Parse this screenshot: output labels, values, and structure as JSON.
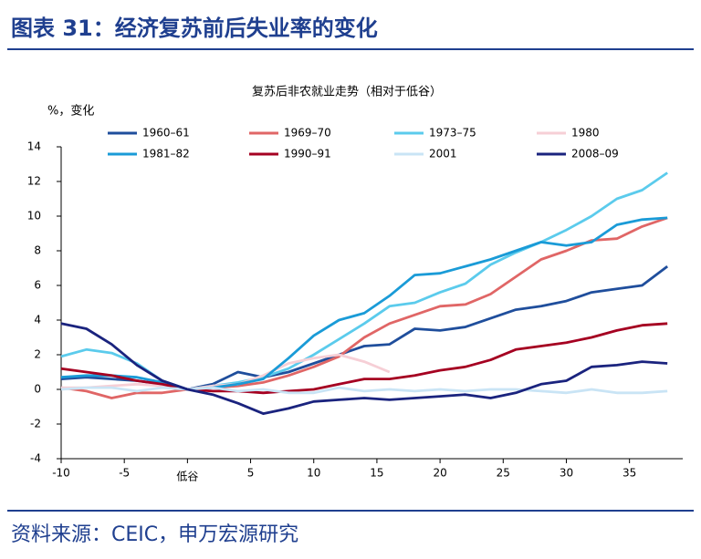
{
  "header": {
    "title": "图表 31：经济复苏前后失业率的变化"
  },
  "footer": {
    "source": "资料来源：CEIC，申万宏源研究"
  },
  "chart_data": {
    "type": "line",
    "title": "复苏后非农就业走势（相对于低谷）",
    "y_label": "%，变化",
    "x": [
      -10,
      -8,
      -6,
      -4,
      -2,
      0,
      2,
      4,
      6,
      8,
      10,
      12,
      14,
      16,
      18,
      20,
      22,
      24,
      26,
      28,
      30,
      32,
      34,
      36,
      38
    ],
    "xlim": [
      -10,
      39
    ],
    "xticks": [
      -10,
      -5,
      {
        "value": 0,
        "label": "低谷"
      },
      5,
      10,
      15,
      20,
      25,
      30,
      35
    ],
    "ylim": [
      -4,
      14
    ],
    "yticks": [
      -4,
      -2,
      0,
      2,
      4,
      6,
      8,
      10,
      12,
      14
    ],
    "series": [
      {
        "name": "1960–61",
        "color": "#1f4e9c",
        "values": [
          0.6,
          0.7,
          0.6,
          0.5,
          0.3,
          0,
          0.3,
          1.0,
          0.7,
          1.0,
          1.5,
          2.0,
          2.5,
          2.6,
          3.5,
          3.4,
          3.6,
          4.1,
          4.6,
          4.8,
          5.1,
          5.6,
          5.8,
          6.0,
          7.1
        ]
      },
      {
        "name": "1969–70",
        "color": "#e06666",
        "values": [
          0.1,
          -0.1,
          -0.5,
          -0.2,
          -0.2,
          0,
          0.1,
          0.2,
          0.4,
          0.8,
          1.3,
          1.9,
          3.0,
          3.8,
          4.3,
          4.8,
          4.9,
          5.5,
          6.5,
          7.5,
          8.0,
          8.6,
          8.7,
          9.4,
          9.9
        ]
      },
      {
        "name": "1973–75",
        "color": "#5bcbec",
        "values": [
          1.9,
          2.3,
          2.1,
          1.5,
          0.5,
          0,
          0.2,
          0.4,
          0.7,
          1.2,
          2.0,
          2.9,
          3.8,
          4.8,
          5.0,
          5.6,
          6.1,
          7.2,
          7.9,
          8.5,
          9.2,
          10.0,
          11.0,
          11.5,
          12.5
        ]
      },
      {
        "name": "1980",
        "color": "#f6cfd6",
        "values": [
          0.1,
          0.1,
          0.2,
          0.3,
          0.2,
          0,
          0.2,
          0.3,
          0.8,
          1.5,
          1.8,
          2.0,
          1.6,
          1.0,
          null,
          null,
          null,
          null,
          null,
          null,
          null,
          null,
          null,
          null,
          null
        ]
      },
      {
        "name": "1981–82",
        "color": "#1a9bd7",
        "values": [
          0.7,
          0.8,
          0.8,
          0.7,
          0.4,
          0,
          0.1,
          0.3,
          0.6,
          1.8,
          3.1,
          4.0,
          4.4,
          5.4,
          6.6,
          6.7,
          7.1,
          7.5,
          8.0,
          8.5,
          8.3,
          8.5,
          9.5,
          9.8,
          9.9
        ]
      },
      {
        "name": "1990–91",
        "color": "#a50021",
        "values": [
          1.2,
          1.0,
          0.8,
          0.5,
          0.3,
          0,
          -0.1,
          -0.1,
          -0.2,
          -0.1,
          0,
          0.3,
          0.6,
          0.6,
          0.8,
          1.1,
          1.3,
          1.7,
          2.3,
          2.5,
          2.7,
          3.0,
          3.4,
          3.7,
          3.8
        ]
      },
      {
        "name": "2001",
        "color": "#c9e4f5",
        "values": [
          0,
          0.1,
          0.1,
          -0.1,
          0.1,
          0,
          0.1,
          -0.1,
          0,
          -0.2,
          -0.2,
          0.1,
          -0.1,
          0,
          -0.1,
          0,
          -0.1,
          0,
          0,
          -0.1,
          -0.2,
          0,
          -0.2,
          -0.2,
          -0.1
        ]
      },
      {
        "name": "2008–09",
        "color": "#1a237e",
        "values": [
          3.8,
          3.5,
          2.6,
          1.4,
          0.5,
          0,
          -0.3,
          -0.8,
          -1.4,
          -1.1,
          -0.7,
          -0.6,
          -0.5,
          -0.6,
          -0.5,
          -0.4,
          -0.3,
          -0.5,
          -0.2,
          0.3,
          0.5,
          1.3,
          1.4,
          1.6,
          1.5
        ]
      }
    ]
  }
}
